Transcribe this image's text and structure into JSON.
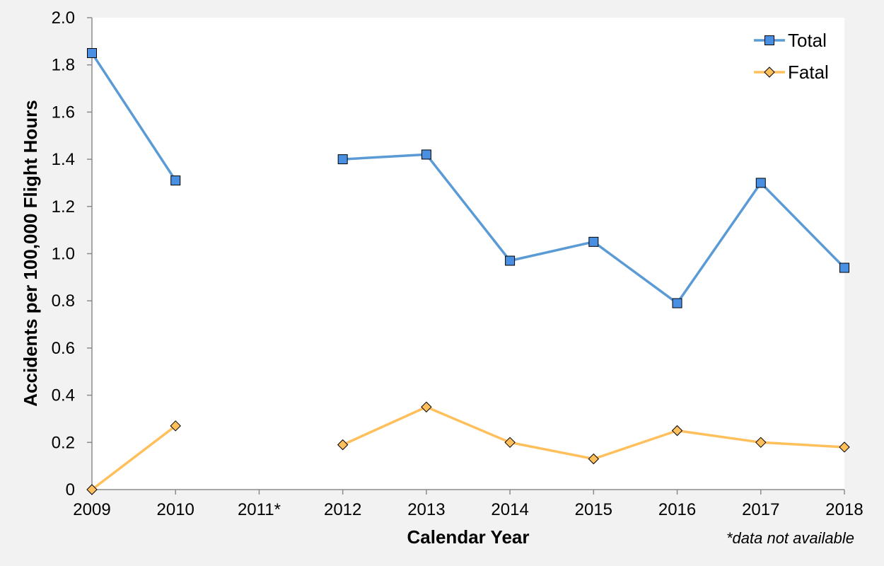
{
  "chart_data": {
    "type": "line",
    "title": "",
    "xlabel": "Calendar Year",
    "ylabel": "Accidents per 100,000 Flight Hours",
    "categories": [
      "2009",
      "2010",
      "2011*",
      "2012",
      "2013",
      "2014",
      "2015",
      "2016",
      "2017",
      "2018"
    ],
    "ylim": [
      0,
      2.0
    ],
    "yticks": [
      "0",
      "0.2",
      "0.4",
      "0.6",
      "0.8",
      "1.0",
      "1.2",
      "1.4",
      "1.6",
      "1.8",
      "2.0"
    ],
    "grid": false,
    "legend_position": "top-right",
    "footnote": "*data not available",
    "series": [
      {
        "name": "Total",
        "color": "#5b9bd5",
        "marker_fill": "#4a90e2",
        "marker": "square",
        "values": [
          1.85,
          1.31,
          null,
          1.4,
          1.42,
          0.97,
          1.05,
          0.79,
          1.3,
          0.94
        ]
      },
      {
        "name": "Fatal",
        "color": "#ffc05c",
        "marker_fill": "#ffc05c",
        "marker": "diamond",
        "values": [
          0.0,
          0.27,
          null,
          0.19,
          0.35,
          0.2,
          0.13,
          0.25,
          0.2,
          0.18
        ]
      }
    ]
  }
}
